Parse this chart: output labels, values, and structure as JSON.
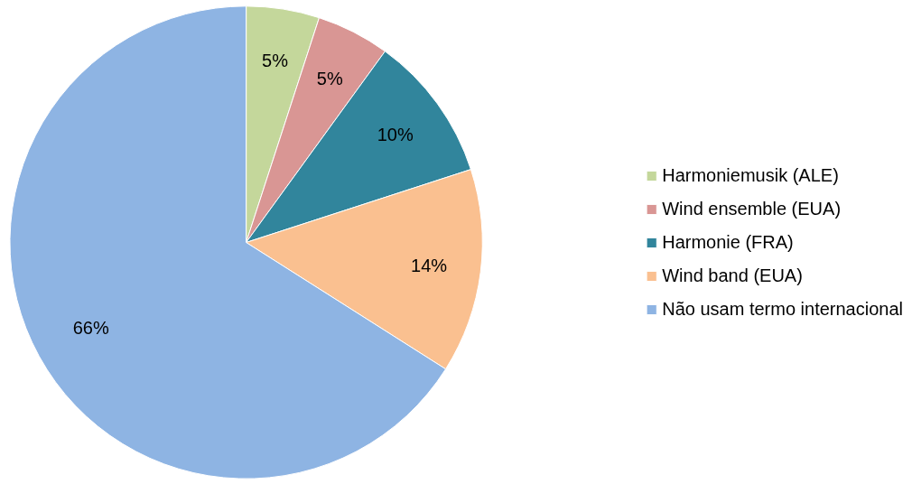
{
  "chart_data": {
    "type": "pie",
    "categories": [
      "Harmoniemusik (ALE)",
      "Wind ensemble (EUA)",
      "Harmonie (FRA)",
      "Wind band (EUA)",
      "Não usam termo internacional"
    ],
    "values": [
      5,
      5,
      10,
      14,
      66
    ],
    "colors": [
      "#c4d79b",
      "#d99694",
      "#31859c",
      "#fac090",
      "#8eb4e3"
    ],
    "value_labels": [
      "5%",
      "5%",
      "10%",
      "14%",
      "66%"
    ],
    "legend": "right"
  }
}
